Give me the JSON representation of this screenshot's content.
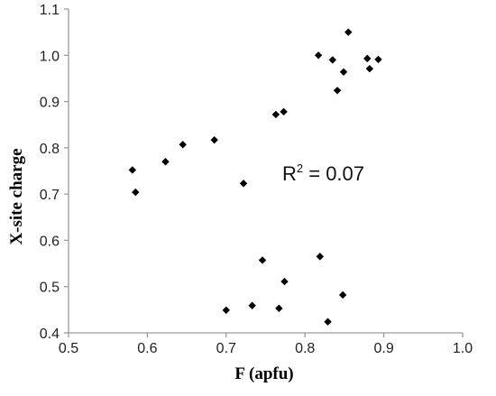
{
  "chart_data": {
    "type": "scatter",
    "xlabel": "F (apfu)",
    "ylabel": "X-site charge",
    "xlim": [
      0.5,
      1.0
    ],
    "ylim": [
      0.4,
      1.1
    ],
    "x_ticks": [
      0.5,
      0.6,
      0.7,
      0.8,
      0.9,
      1.0
    ],
    "x_tick_labels": [
      "0.5",
      "0.6",
      "0.7",
      "0.8",
      "0.9",
      "1.0"
    ],
    "y_ticks": [
      0.4,
      0.5,
      0.6,
      0.7,
      0.8,
      0.9,
      1.0,
      1.1
    ],
    "y_tick_labels": [
      "0.4",
      "0.5",
      "0.6",
      "0.7",
      "0.8",
      "0.9",
      "1.0",
      "1.1"
    ],
    "grid": false,
    "legend": "none",
    "marker": "diamond",
    "marker_color": "#000000",
    "annotation": {
      "base": "R",
      "superscript": "2",
      "rest": " = 0.07"
    },
    "series": [
      {
        "points": [
          {
            "x": 0.581,
            "y": 0.752
          },
          {
            "x": 0.585,
            "y": 0.704
          },
          {
            "x": 0.623,
            "y": 0.77
          },
          {
            "x": 0.645,
            "y": 0.807
          },
          {
            "x": 0.685,
            "y": 0.817
          },
          {
            "x": 0.722,
            "y": 0.723
          },
          {
            "x": 0.763,
            "y": 0.872
          },
          {
            "x": 0.773,
            "y": 0.878
          },
          {
            "x": 0.817,
            "y": 1.0
          },
          {
            "x": 0.835,
            "y": 0.99
          },
          {
            "x": 0.841,
            "y": 0.924
          },
          {
            "x": 0.849,
            "y": 0.964
          },
          {
            "x": 0.855,
            "y": 1.05
          },
          {
            "x": 0.879,
            "y": 0.993
          },
          {
            "x": 0.882,
            "y": 0.971
          },
          {
            "x": 0.893,
            "y": 0.991
          },
          {
            "x": 0.7,
            "y": 0.449
          },
          {
            "x": 0.733,
            "y": 0.459
          },
          {
            "x": 0.746,
            "y": 0.557
          },
          {
            "x": 0.767,
            "y": 0.453
          },
          {
            "x": 0.774,
            "y": 0.511
          },
          {
            "x": 0.819,
            "y": 0.565
          },
          {
            "x": 0.829,
            "y": 0.424
          },
          {
            "x": 0.848,
            "y": 0.482
          }
        ]
      }
    ]
  }
}
